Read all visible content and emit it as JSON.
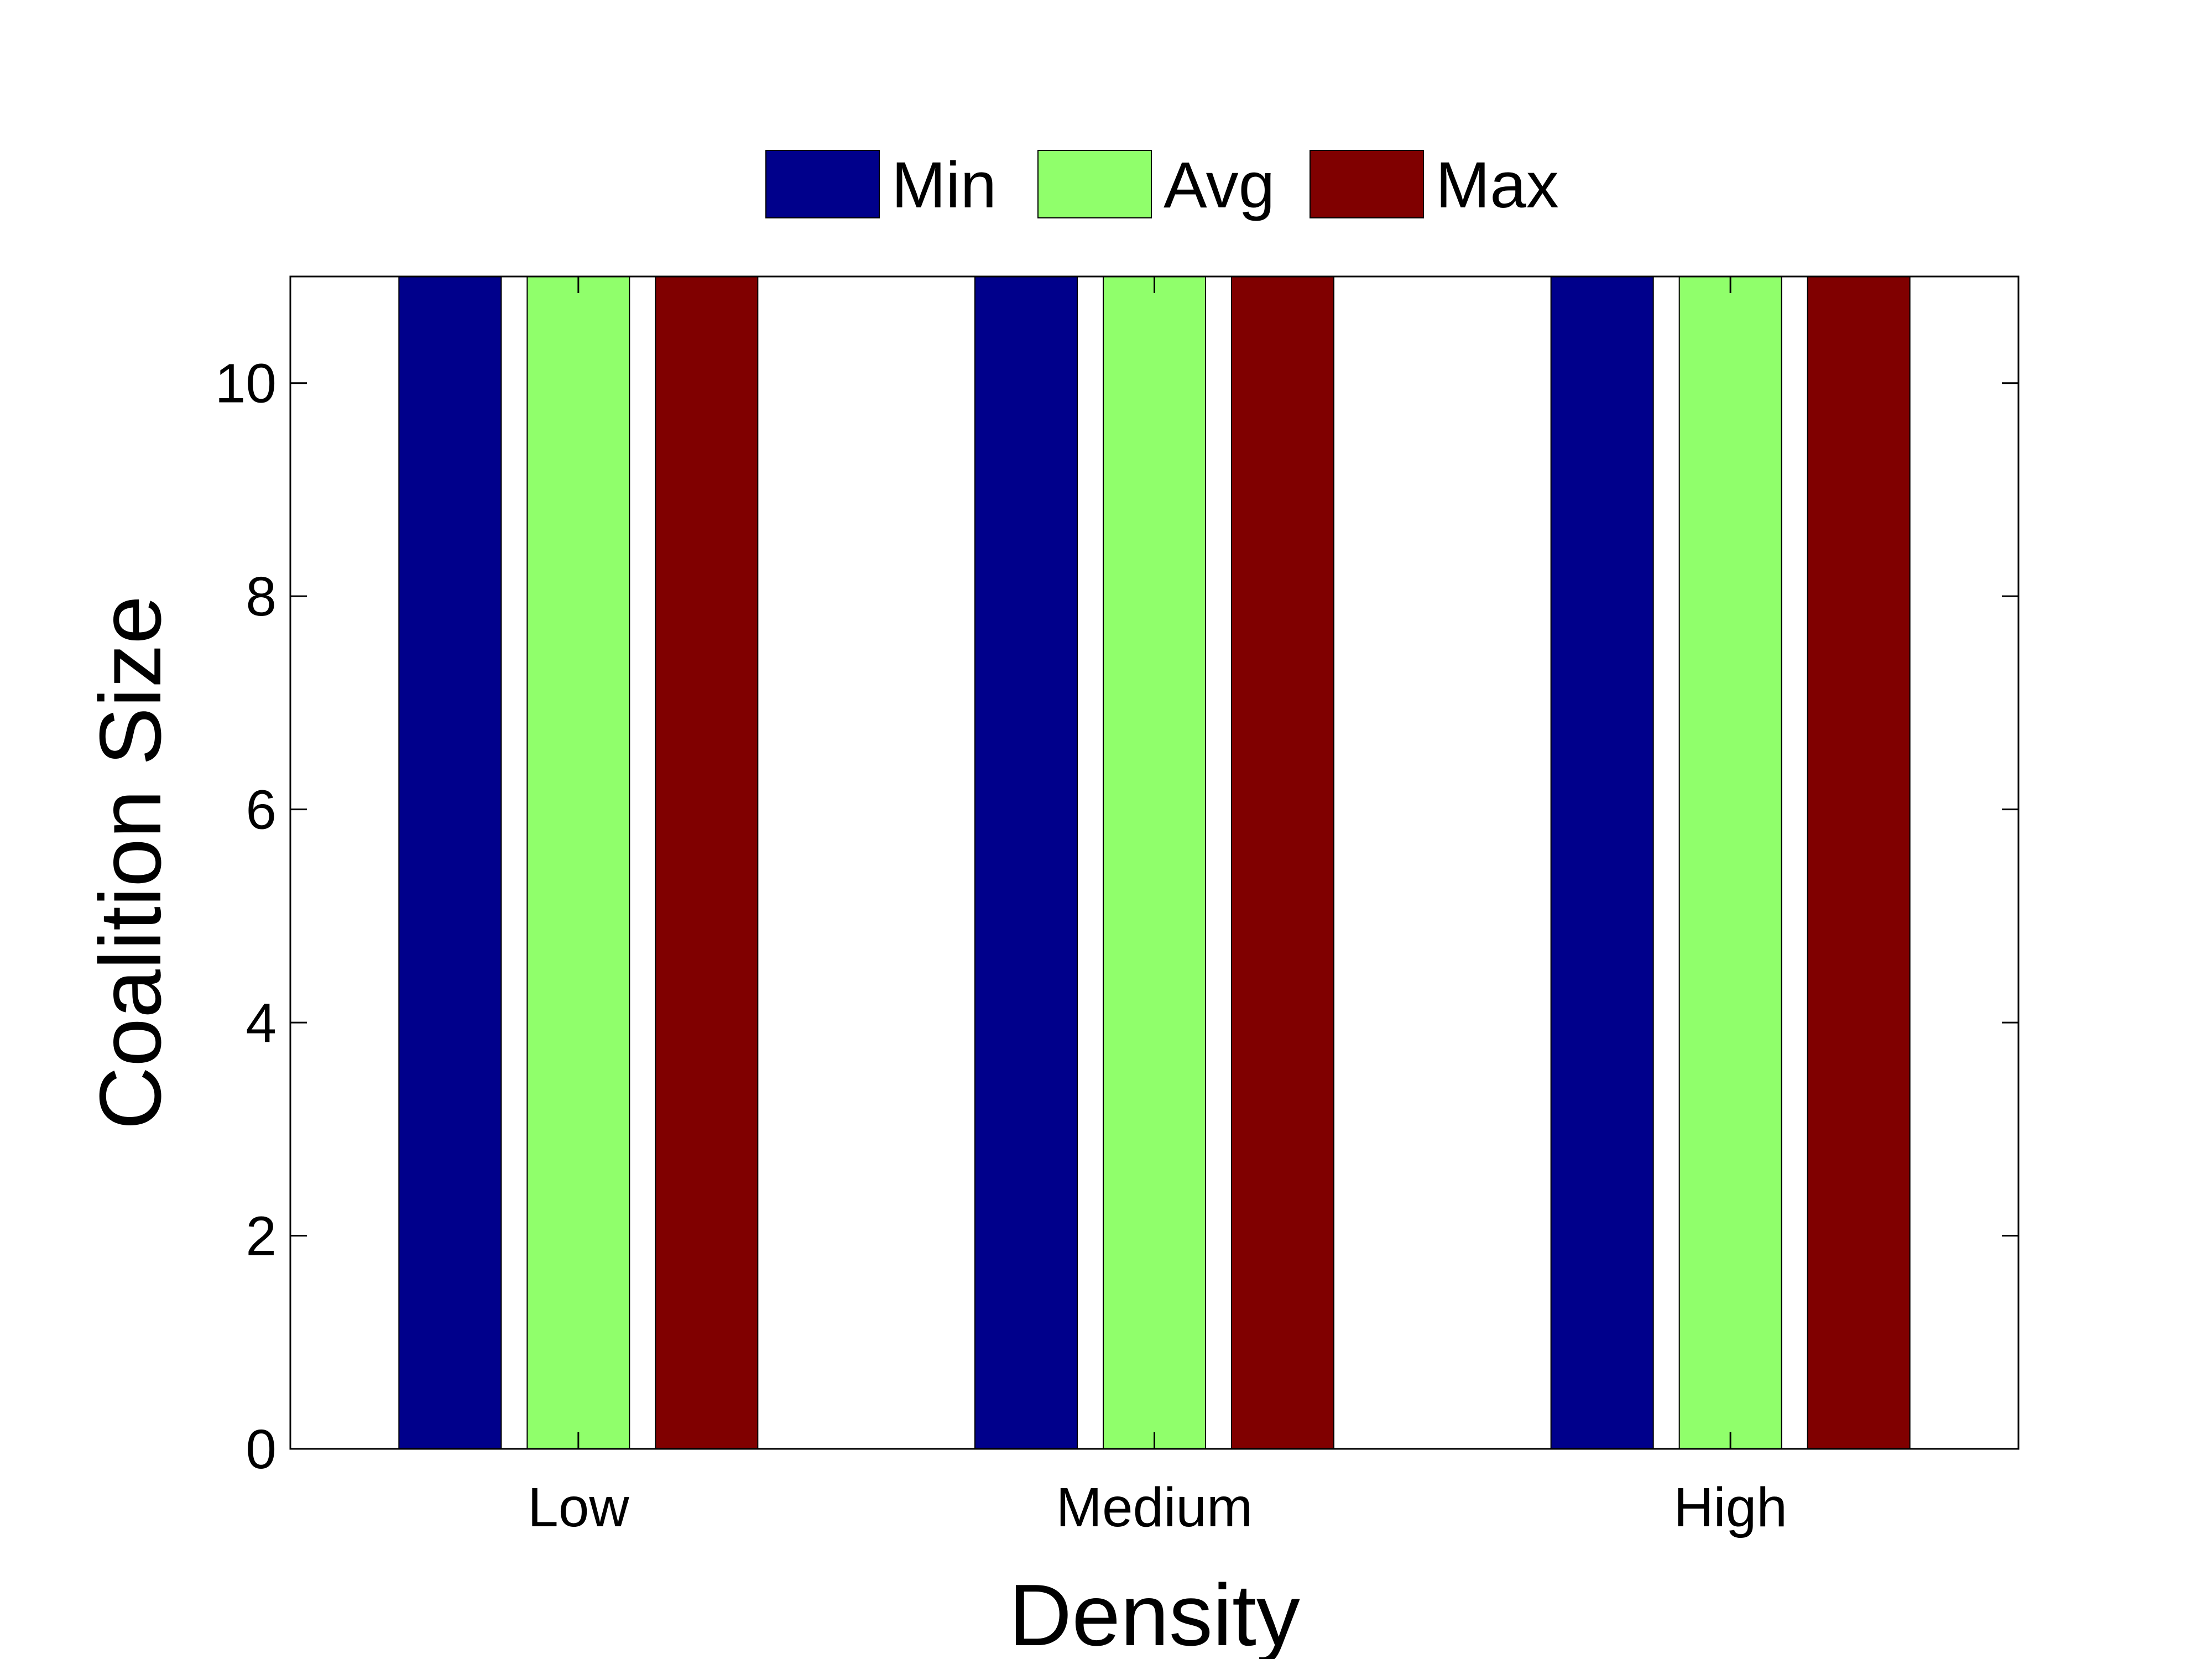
{
  "chart_data": {
    "type": "bar",
    "xlabel": "Density",
    "ylabel": "Coalition Size",
    "categories": [
      "Low",
      "Medium",
      "High"
    ],
    "ylim": [
      0,
      11
    ],
    "yticks": [
      "0",
      "2",
      "4",
      "6",
      "8",
      "10"
    ],
    "series": [
      {
        "name": "Min",
        "color": "#00008B",
        "values": [
          11,
          11,
          11
        ]
      },
      {
        "name": "Avg",
        "color": "#90FF6B",
        "values": [
          11,
          11,
          11
        ]
      },
      {
        "name": "Max",
        "color": "#800000",
        "values": [
          11,
          11,
          11
        ]
      }
    ],
    "legend_position": "top-center",
    "grid": false
  }
}
